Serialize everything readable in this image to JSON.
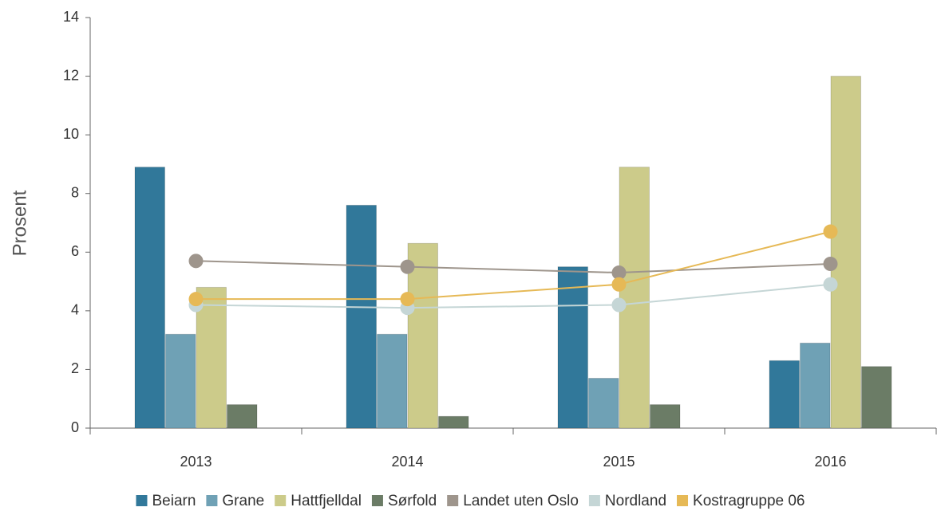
{
  "chart_data": {
    "type": "bar",
    "ylabel": "Prosent",
    "categories": [
      "2013",
      "2014",
      "2015",
      "2016"
    ],
    "series": [
      {
        "name": "Beiarn",
        "type": "bar",
        "color": "#31789a",
        "values": [
          8.9,
          7.6,
          5.5,
          2.3
        ]
      },
      {
        "name": "Grane",
        "type": "bar",
        "color": "#6fa1b5",
        "values": [
          3.2,
          3.2,
          1.7,
          2.9
        ]
      },
      {
        "name": "Hattfjelldal",
        "type": "bar",
        "color": "#cccb8a",
        "values": [
          4.8,
          6.3,
          8.9,
          12.0
        ]
      },
      {
        "name": "Sørfold",
        "type": "bar",
        "color": "#6b7c66",
        "values": [
          0.8,
          0.4,
          0.8,
          2.1
        ]
      },
      {
        "name": "Landet uten Oslo",
        "type": "line",
        "color": "#9e958c",
        "values": [
          5.7,
          5.5,
          5.3,
          5.6
        ]
      },
      {
        "name": "Nordland",
        "type": "line",
        "color": "#c5d6d6",
        "values": [
          4.2,
          4.1,
          4.2,
          4.9
        ]
      },
      {
        "name": "Kostragruppe 06",
        "type": "line",
        "color": "#e6b956",
        "values": [
          4.4,
          4.4,
          4.9,
          6.7
        ]
      }
    ],
    "ylim": [
      0,
      14
    ],
    "yticks": [
      0,
      2,
      4,
      6,
      8,
      10,
      12,
      14
    ],
    "grid": false,
    "legend": "bottom"
  }
}
